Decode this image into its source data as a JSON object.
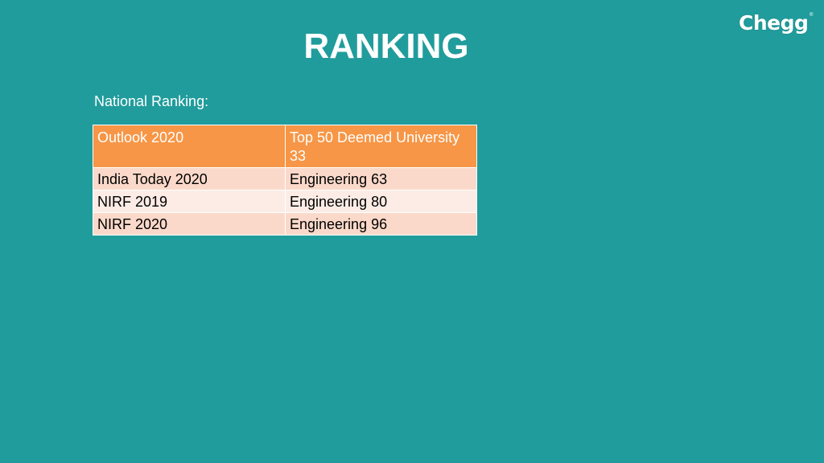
{
  "brand": {
    "logo_text": "Chegg",
    "trademark": "®"
  },
  "slide": {
    "title": "RANKING",
    "subtitle": "National Ranking:"
  },
  "table": {
    "header": [
      "Outlook 2020",
      "Top 50 Deemed University 33"
    ],
    "rows": [
      [
        "India Today 2020",
        "Engineering 63"
      ],
      [
        "NIRF 2019",
        "Engineering 80"
      ],
      [
        "NIRF 2020",
        "Engineering 96"
      ]
    ]
  },
  "colors": {
    "background": "#219c9c",
    "header_fill": "#f79646",
    "row_fill_odd": "#fbd9ca",
    "row_fill_even": "#fdece6",
    "title_text": "#ffffff"
  }
}
